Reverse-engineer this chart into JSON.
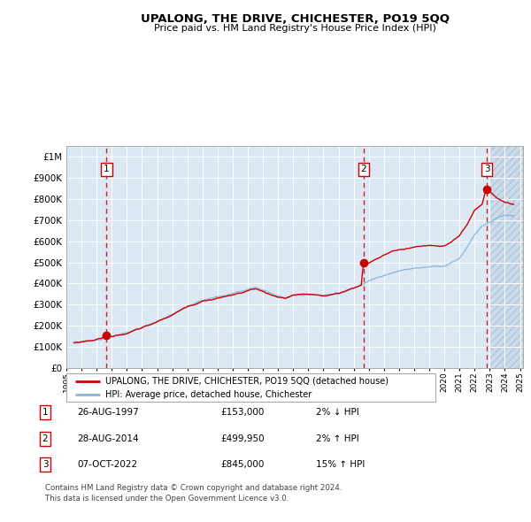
{
  "title": "UPALONG, THE DRIVE, CHICHESTER, PO19 5QQ",
  "subtitle": "Price paid vs. HM Land Registry's House Price Index (HPI)",
  "legend_line1": "UPALONG, THE DRIVE, CHICHESTER, PO19 5QQ (detached house)",
  "legend_line2": "HPI: Average price, detached house, Chichester",
  "footnote1": "Contains HM Land Registry data © Crown copyright and database right 2024.",
  "footnote2": "This data is licensed under the Open Government Licence v3.0.",
  "transactions": [
    {
      "num": 1,
      "date": "26-AUG-1997",
      "price": 153000,
      "hpi_rel": "2% ↓ HPI"
    },
    {
      "num": 2,
      "date": "28-AUG-2014",
      "price": 499950,
      "hpi_rel": "2% ↑ HPI"
    },
    {
      "num": 3,
      "date": "07-OCT-2022",
      "price": 845000,
      "hpi_rel": "15% ↑ HPI"
    }
  ],
  "transaction_years": [
    1997.65,
    2014.65,
    2022.8
  ],
  "transaction_prices": [
    153000,
    499950,
    845000
  ],
  "ylim": [
    0,
    1050000
  ],
  "yticks": [
    0,
    100000,
    200000,
    300000,
    400000,
    500000,
    600000,
    700000,
    800000,
    900000,
    1000000
  ],
  "ytick_labels": [
    "£0",
    "£100K",
    "£200K",
    "£300K",
    "£400K",
    "£500K",
    "£600K",
    "£700K",
    "£800K",
    "£900K",
    "£1M"
  ],
  "hpi_line_color": "#8ab4d8",
  "price_line_color": "#cc0000",
  "dot_color": "#cc0000",
  "bg_color": "#dce9f5",
  "hatch_color": "#ccdaea",
  "grid_color": "#ffffff",
  "dashed_line_color": "#cc0000",
  "xlim": [
    1995.3,
    2025.2
  ],
  "xticks": [
    1995,
    1996,
    1997,
    1998,
    1999,
    2000,
    2001,
    2002,
    2003,
    2004,
    2005,
    2006,
    2007,
    2008,
    2009,
    2010,
    2011,
    2012,
    2013,
    2014,
    2015,
    2016,
    2017,
    2018,
    2019,
    2020,
    2021,
    2022,
    2023,
    2024,
    2025
  ],
  "hatch_start": 2023.0
}
